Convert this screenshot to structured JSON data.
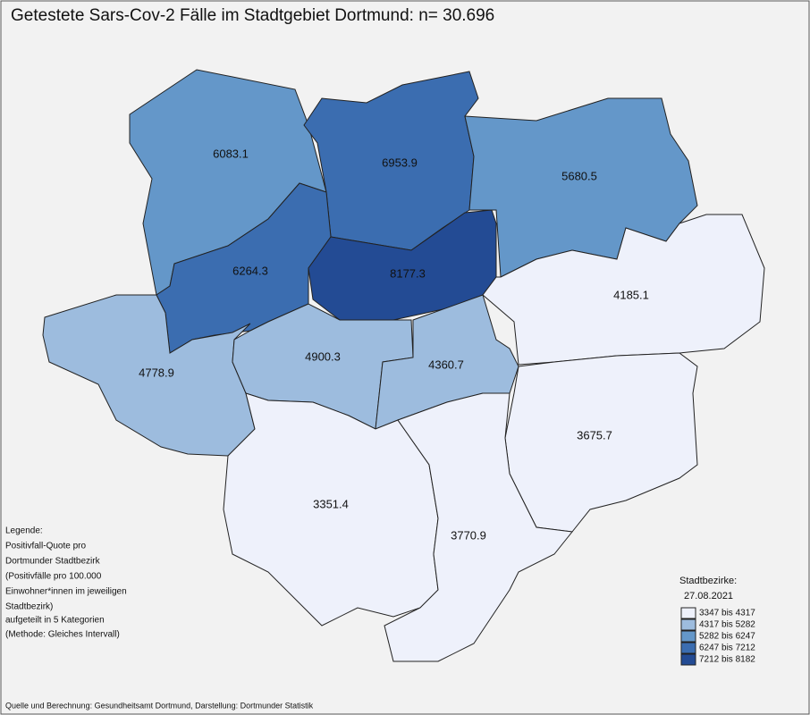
{
  "title": "Getestete Sars-Cov-2 Fälle im Stadtgebiet Dortmund: n= 30.696",
  "regions": [
    {
      "value": 6083.1,
      "color": "#6497c9"
    },
    {
      "value": 6953.9,
      "color": "#3b6db0"
    },
    {
      "value": 5680.5,
      "color": "#6497c9"
    },
    {
      "value": 6264.3,
      "color": "#3b6db0"
    },
    {
      "value": 8177.3,
      "color": "#234b94"
    },
    {
      "value": 4185.1,
      "color": "#eef1fb"
    },
    {
      "value": 4778.9,
      "color": "#9dbcde"
    },
    {
      "value": 4900.3,
      "color": "#9dbcde"
    },
    {
      "value": 4360.7,
      "color": "#9dbcde"
    },
    {
      "value": 3675.7,
      "color": "#eef1fb"
    },
    {
      "value": 3351.4,
      "color": "#eef1fb"
    },
    {
      "value": 3770.9,
      "color": "#eef1fb"
    }
  ],
  "note": [
    "Legende:",
    "Positivfall-Quote pro",
    "Dortmunder Stadtbezirk",
    "(Positivfälle pro 100.000",
    "Einwohner*innen im jeweiligen",
    "Stadtbezirk)",
    "aufgeteilt in 5 Kategorien",
    "(Methode: Gleiches Intervall)"
  ],
  "legend": {
    "title": "Stadtbezirke:",
    "date": "27.08.2021",
    "classes": [
      {
        "label": "3347 bis 4317",
        "color": "#eef1fb"
      },
      {
        "label": "4317 bis 5282",
        "color": "#9dbcde"
      },
      {
        "label": "5282 bis 6247",
        "color": "#6497c9"
      },
      {
        "label": "6247 bis 7212",
        "color": "#3b6db0"
      },
      {
        "label": "7212 bis 8182",
        "color": "#234b94"
      }
    ]
  },
  "source": "Quelle und Berechnung: Gesundheitsamt Dortmund, Darstellung: Dortmunder Statistik"
}
